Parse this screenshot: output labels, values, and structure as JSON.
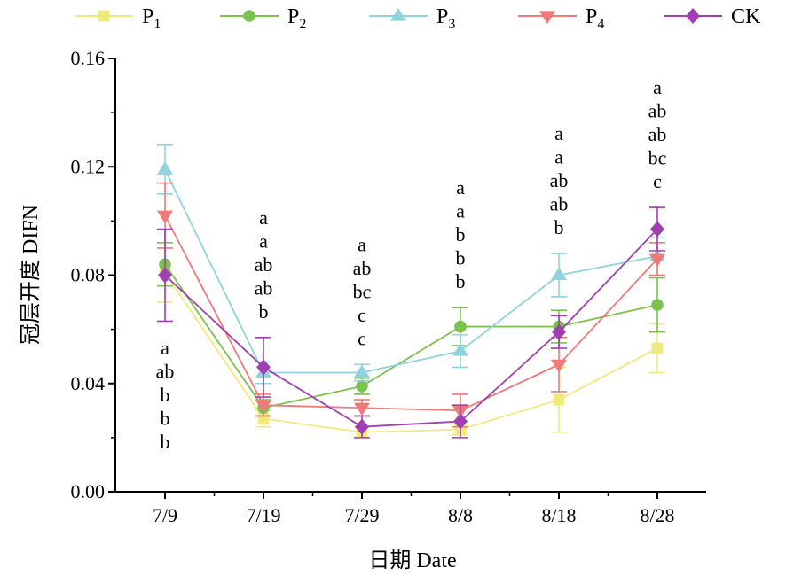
{
  "chart_data": {
    "type": "line",
    "title": "",
    "xlabel": "日期 Date",
    "ylabel": "冠层开度 DIFN",
    "categories": [
      "7/9",
      "7/19",
      "7/29",
      "8/8",
      "8/18",
      "8/28"
    ],
    "ylim": [
      0,
      0.16
    ],
    "yticks": [
      "0.00",
      "0.04",
      "0.08",
      "0.12",
      "0.16"
    ],
    "grid": false,
    "legend_position": "top",
    "series": [
      {
        "name": "P",
        "subscript": "1",
        "color": "#f0ea7a",
        "marker": "square",
        "values": [
          0.081,
          0.027,
          0.022,
          0.023,
          0.034,
          0.053
        ],
        "errors": [
          0.011,
          0.003,
          0.002,
          0.002,
          0.012,
          0.009
        ]
      },
      {
        "name": "P",
        "subscript": "2",
        "color": "#7cc24f",
        "marker": "circle",
        "values": [
          0.084,
          0.031,
          0.039,
          0.061,
          0.061,
          0.069
        ],
        "errors": [
          0.008,
          0.003,
          0.003,
          0.007,
          0.006,
          0.01
        ]
      },
      {
        "name": "P",
        "subscript": "3",
        "color": "#8fd3de",
        "marker": "triangle-up",
        "values": [
          0.119,
          0.044,
          0.044,
          0.052,
          0.08,
          0.087
        ],
        "errors": [
          0.009,
          0.004,
          0.003,
          0.006,
          0.008,
          0.007
        ]
      },
      {
        "name": "P",
        "subscript": "4",
        "color": "#f07a78",
        "marker": "triangle-down",
        "values": [
          0.102,
          0.032,
          0.031,
          0.03,
          0.047,
          0.086
        ],
        "errors": [
          0.012,
          0.004,
          0.003,
          0.006,
          0.01,
          0.006
        ]
      },
      {
        "name": "CK",
        "subscript": "",
        "color": "#a040b0",
        "marker": "diamond",
        "values": [
          0.08,
          0.046,
          0.024,
          0.026,
          0.059,
          0.097
        ],
        "errors": [
          0.017,
          0.011,
          0.004,
          0.006,
          0.006,
          0.008
        ]
      }
    ],
    "annotations": [
      {
        "category": "7/9",
        "position": "below",
        "letters": [
          "a",
          "ab",
          "b",
          "b",
          "b"
        ]
      },
      {
        "category": "7/19",
        "position": "above",
        "letters": [
          "a",
          "a",
          "ab",
          "ab",
          "b"
        ]
      },
      {
        "category": "7/29",
        "position": "above",
        "letters": [
          "a",
          "ab",
          "bc",
          "c",
          "c"
        ]
      },
      {
        "category": "8/8",
        "position": "above",
        "letters": [
          "a",
          "a",
          "b",
          "b",
          "b"
        ]
      },
      {
        "category": "8/18",
        "position": "above",
        "letters": [
          "a",
          "a",
          "ab",
          "ab",
          "b"
        ]
      },
      {
        "category": "8/28",
        "position": "above",
        "letters": [
          "a",
          "ab",
          "ab",
          "bc",
          "c"
        ]
      }
    ]
  }
}
